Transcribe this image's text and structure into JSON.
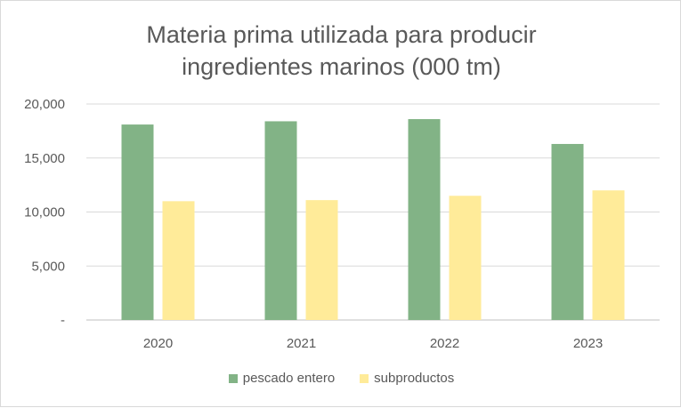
{
  "chart_data": {
    "type": "bar",
    "title_lines": [
      "Materia prima utilizada para producir",
      "ingredientes marinos (000 tm)"
    ],
    "categories": [
      "2020",
      "2021",
      "2022",
      "2023"
    ],
    "series": [
      {
        "name": "pescado entero",
        "color": "#82b386",
        "values": [
          18100,
          18400,
          18600,
          16300
        ]
      },
      {
        "name": "subproductos",
        "color": "#ffeb99",
        "values": [
          11000,
          11100,
          11500,
          12000
        ]
      }
    ],
    "ylim": [
      0,
      20000
    ],
    "yticks": [
      {
        "value": 0,
        "label": "-"
      },
      {
        "value": 5000,
        "label": "5,000"
      },
      {
        "value": 10000,
        "label": "10,000"
      },
      {
        "value": 15000,
        "label": "15,000"
      },
      {
        "value": 20000,
        "label": "20,000"
      }
    ],
    "grid": true,
    "legend_position": "bottom"
  }
}
